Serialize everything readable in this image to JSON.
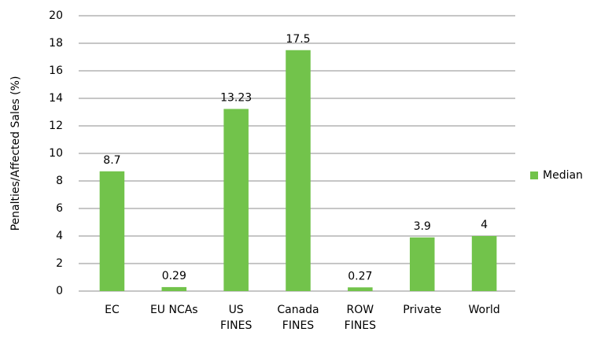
{
  "chart_data": {
    "type": "bar",
    "y_label": "Penalties/Affected Sales (%)",
    "categories": [
      "EC",
      "EU NCAs",
      "US\nFINES",
      "Canada\nFINES",
      "ROW\nFINES",
      "Private",
      "World"
    ],
    "series": [
      {
        "name": "Median",
        "color": "#72c34b",
        "values": [
          8.7,
          0.29,
          13.23,
          17.5,
          0.27,
          3.9,
          4
        ]
      }
    ],
    "ylim": [
      0,
      20
    ],
    "yticks": [
      0,
      2,
      4,
      6,
      8,
      10,
      12,
      14,
      16,
      18,
      20
    ],
    "grid": true,
    "legend": "right"
  }
}
